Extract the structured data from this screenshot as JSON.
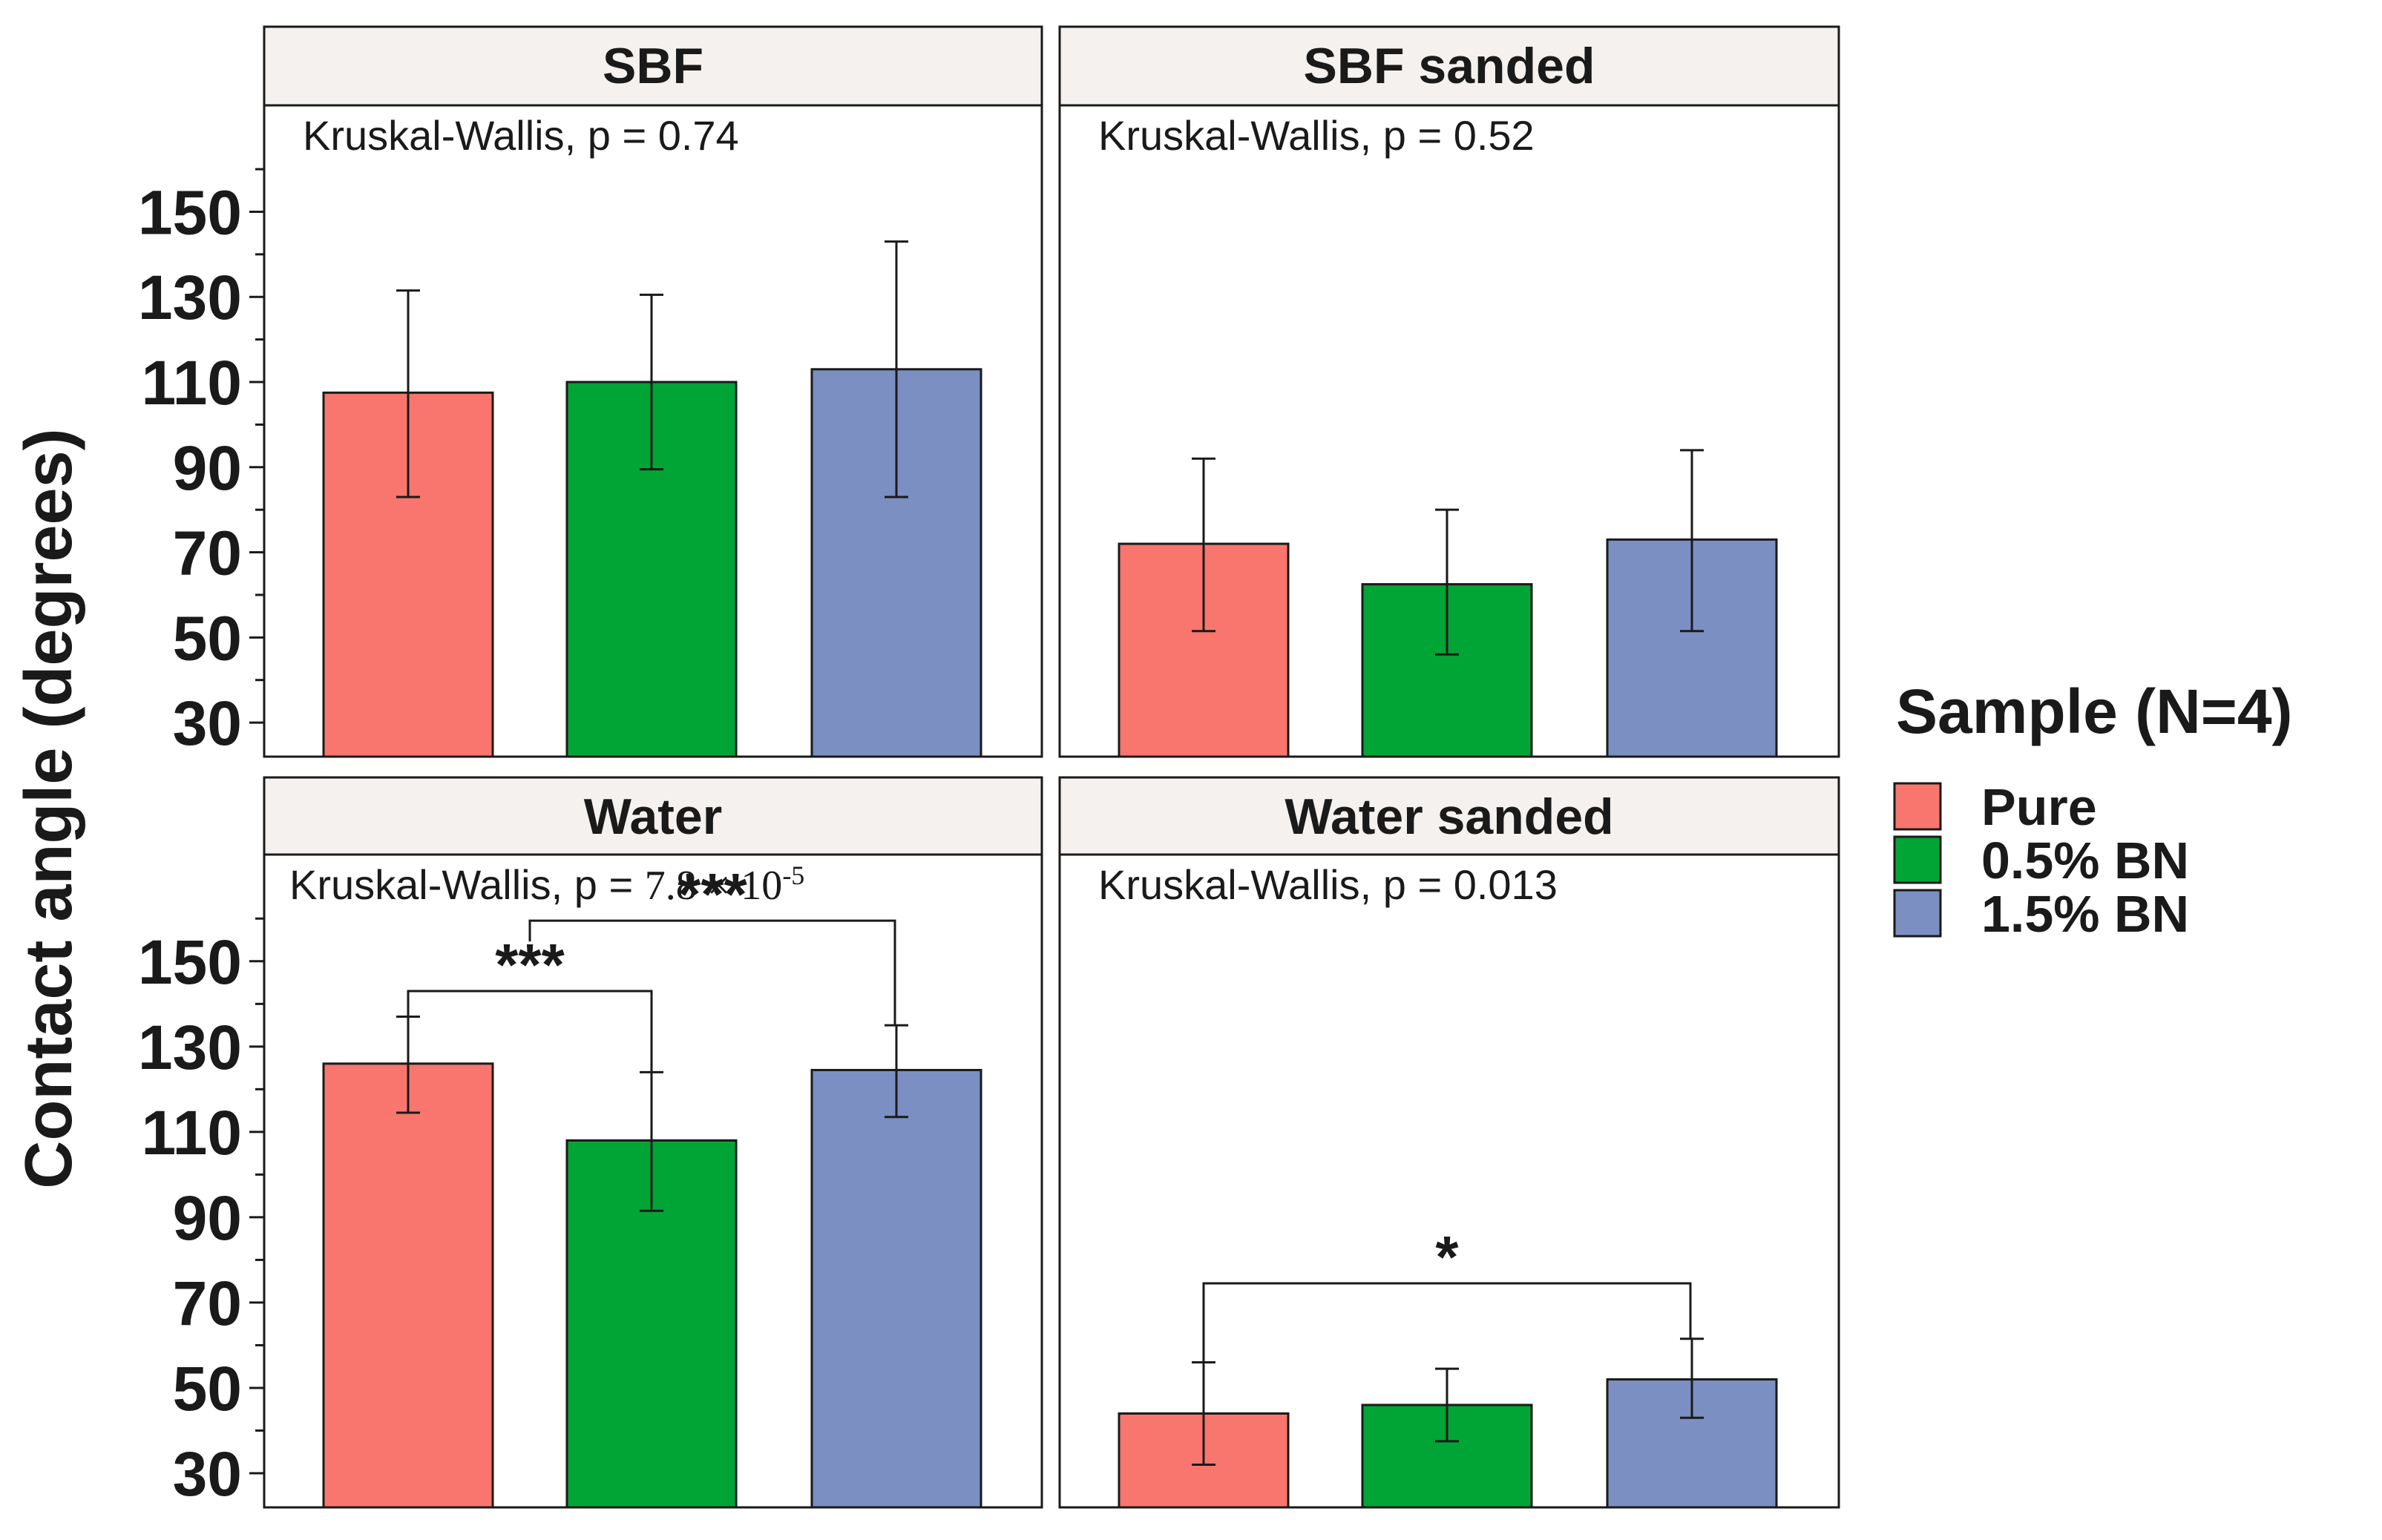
{
  "chart_data": {
    "type": "bar",
    "ylabel": "Contact angle (degrees)",
    "ylim": [
      22,
      175
    ],
    "y_ticks": [
      30,
      50,
      70,
      90,
      110,
      130,
      150
    ],
    "legend": {
      "title": "Sample (N=4)",
      "position": "right",
      "entries": [
        {
          "name": "Pure",
          "color": "#f8766d"
        },
        {
          "name": "0.5% BN",
          "color": "#00a536"
        },
        {
          "name": "1.5% BN",
          "color": "#7b8fc2"
        }
      ]
    },
    "categories": [
      "Pure",
      "0.5% BN",
      "1.5% BN"
    ],
    "panels": [
      {
        "title": "SBF",
        "stat": {
          "test": "Kruskal-Wallis",
          "p_text": "p = 0.74"
        },
        "values": [
          107.5,
          110,
          113
        ],
        "err_low": [
          83,
          89.5,
          83
        ],
        "err_high": [
          131.5,
          130.5,
          143
        ],
        "comparisons": []
      },
      {
        "title": "SBF sanded",
        "stat": {
          "test": "Kruskal-Wallis",
          "p_text": "p = 0.52"
        },
        "values": [
          72,
          62.5,
          73
        ],
        "err_low": [
          51.5,
          46,
          51.5
        ],
        "err_high": [
          92,
          80,
          94
        ],
        "comparisons": []
      },
      {
        "title": "Water",
        "stat": {
          "test": "Kruskal-Wallis",
          "p_prefix": "p = ",
          "p_mantissa": "7.8 × 10",
          "p_exponent": "-5"
        },
        "values": [
          126,
          108,
          124.5
        ],
        "err_low": [
          114.5,
          91.5,
          113.5
        ],
        "err_high": [
          137,
          124,
          135
        ],
        "comparisons": [
          {
            "from": 0,
            "to": 1,
            "y": 143,
            "label": "***"
          },
          {
            "from": 0.5,
            "to": 2,
            "y": 159.5,
            "label": "***"
          }
        ]
      },
      {
        "title": "Water sanded",
        "stat": {
          "test": "Kruskal-Wallis",
          "p_text": "p = 0.013"
        },
        "values": [
          44,
          46,
          52
        ],
        "err_low": [
          32,
          37.5,
          43
        ],
        "err_high": [
          56,
          54.5,
          61.5
        ],
        "comparisons": [
          {
            "from": 0,
            "to": 2,
            "y": 74.5,
            "label": "*"
          }
        ]
      }
    ]
  }
}
